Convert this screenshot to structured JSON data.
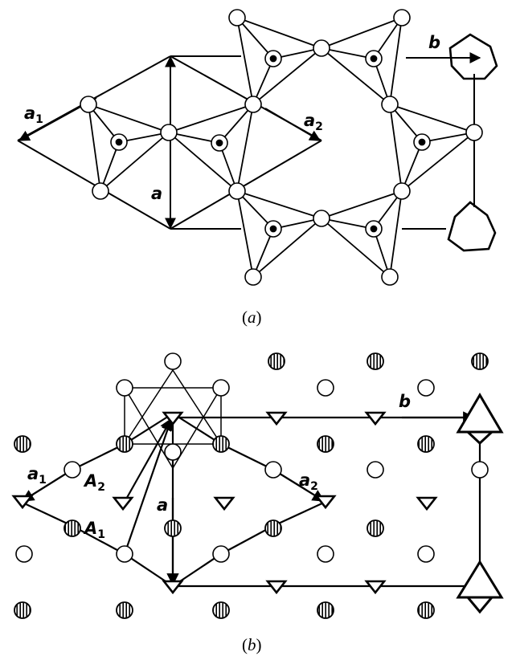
{
  "figure_a": {
    "caption_open": "(",
    "caption_letter": "a",
    "caption_close": ")",
    "labels": {
      "a1_base": "a",
      "a1_sub": "1",
      "a2_base": "a",
      "a2_sub": "2",
      "a": "a",
      "b": "b"
    }
  },
  "figure_b": {
    "caption_open": "(",
    "caption_letter": "b",
    "caption_close": ")",
    "labels": {
      "a1_base": "a",
      "a1_sub": "1",
      "a2_base": "a",
      "a2_sub": "2",
      "A1_base": "A",
      "A1_sub": "1",
      "A2_base": "A",
      "A2_sub": "2",
      "a": "a",
      "b": "b"
    }
  },
  "colors": {
    "stroke": "#000000",
    "background": "#ffffff"
  }
}
